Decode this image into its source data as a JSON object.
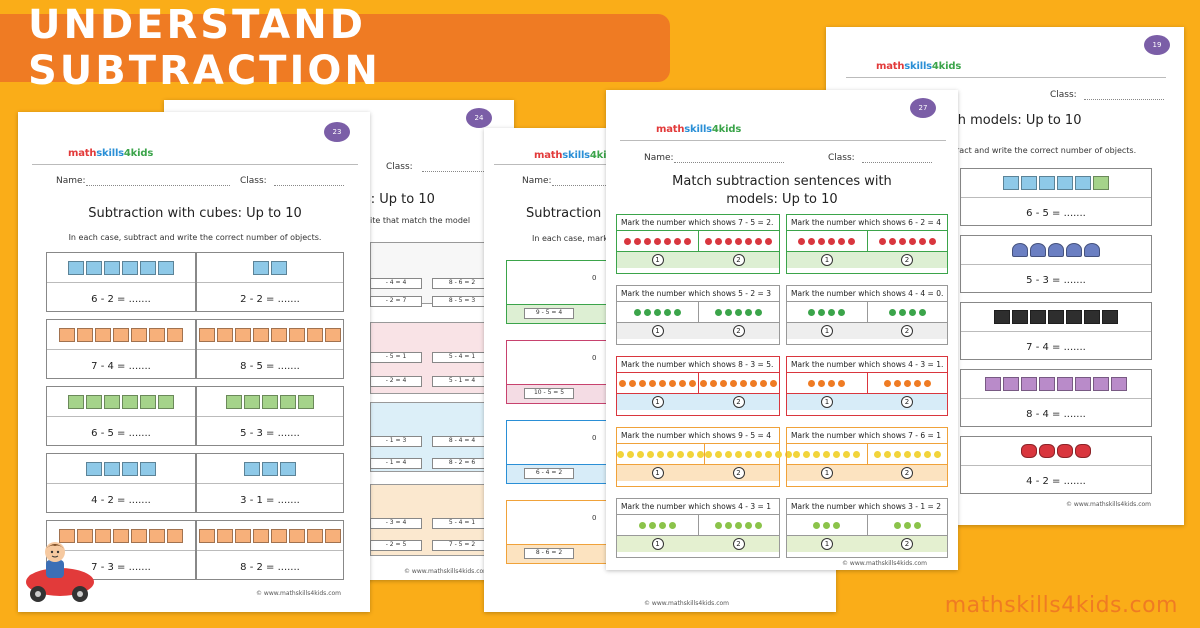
{
  "banner": {
    "title": "UNDERSTAND SUBTRACTION"
  },
  "footer": {
    "site": "mathskills4kids.com"
  },
  "logo": {
    "part1": "math",
    "part2": "skills",
    "part3": "4kids"
  },
  "colors": {
    "background": "#FAAD18",
    "banner": "#EF7B23"
  },
  "sheet_cubes": {
    "page": "23",
    "name_label": "Name:",
    "class_label": "Class:",
    "title": "Subtraction with cubes: Up to 10",
    "instruction": "In each case, subtract and write the correct number of objects.",
    "rows": [
      [
        "6  -  2 = .......",
        "2  -  2 = ......."
      ],
      [
        "7  -  4 = .......",
        "8  -  5 = ......."
      ],
      [
        "6  -  5 = .......",
        "5  -  3 = ......."
      ],
      [
        "4  -  2 = .......",
        "3  -  1 = ......."
      ],
      [
        "7  -  3 = .......",
        "8  -  2 = ......."
      ]
    ],
    "copyright": "© www.mathskills4kids.com"
  },
  "sheet_back1": {
    "page": "24",
    "class_label": "Class:",
    "title": "s: Up to 10",
    "instruction": "ite that match the model",
    "pills": [
      [
        "- 4 = 4",
        "8 - 6 = 2"
      ],
      [
        "- 2 = 7",
        "8 - 5 = 3"
      ],
      [
        "- 5 = 1",
        "5 - 4 = 1"
      ],
      [
        "- 2 = 4",
        "5 - 1 = 4"
      ],
      [
        "- 1 = 3",
        "8 - 4 = 4"
      ],
      [
        "- 1 = 4",
        "8 - 2 = 6"
      ],
      [
        "- 3 = 4",
        "5 - 4 = 1"
      ],
      [
        "- 2 = 5",
        "7 - 5 = 2"
      ]
    ],
    "copyright": "© www.mathskills4kids.com"
  },
  "sheet_back2": {
    "name_label": "Name:",
    "title": "Subtraction s",
    "instruction": "In each case, mark t",
    "pills": [
      "9 - 5 = 4",
      "10 - 5 = 5",
      "6 - 4 = 2",
      "8 - 6 = 2"
    ],
    "zero": "0",
    "copyright": "© www.mathskills4kids.com"
  },
  "sheet_match": {
    "page": "27",
    "name_label": "Name:",
    "class_label": "Class:",
    "title_line1": "Match subtraction sentences with",
    "title_line2": "models: Up to 10",
    "rows": [
      {
        "left": "Mark the number which shows 7 - 5 = 2.",
        "right": "Mark the number which shows 6 - 2 = 4"
      },
      {
        "left": "Mark the number which shows 5 - 2 = 3",
        "right": "Mark the number which shows 4 - 4 = 0."
      },
      {
        "left": "Mark the number which shows 8 - 3 = 5.",
        "right": "Mark the number which shows 4 - 3 = 1."
      },
      {
        "left": "Mark the number which shows 9 - 5 = 4",
        "right": "Mark the number which shows 7 - 6 = 1"
      },
      {
        "left": "Mark the number which shows 4 - 3 = 1",
        "right": "Mark the number which shows 3 - 1 = 2"
      }
    ],
    "option1": "1",
    "option2": "2",
    "copyright": "© www.mathskills4kids.com"
  },
  "sheet_right": {
    "page": "19",
    "class_label": "Class:",
    "title": "n with models: Up to 10",
    "instruction": "ract and write the correct number of objects.",
    "equations": [
      "6  -  5 = .......",
      "5  -  3 = .......",
      "7  -  4 = .......",
      "8  -  4 = .......",
      "4  -  2 = ......."
    ],
    "copyright": "© www.mathskills4kids.com"
  }
}
